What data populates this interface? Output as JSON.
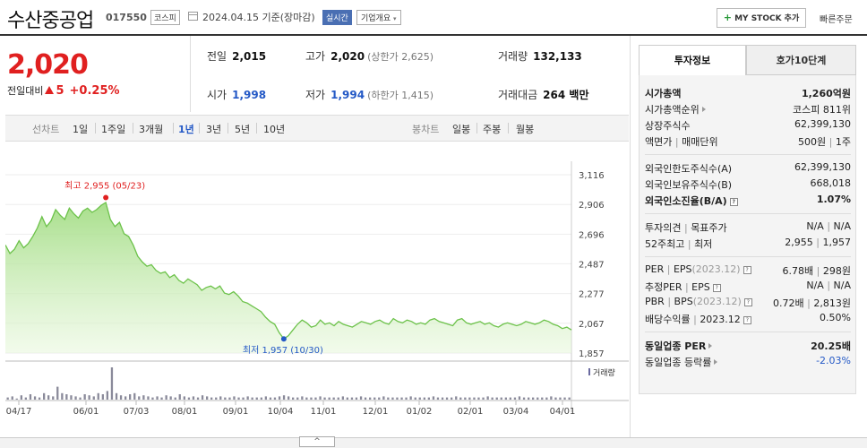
{
  "header": {
    "stock_name": "수산중공업",
    "stock_code": "017550",
    "market_badge": "코스피",
    "date_text": "2024.04.15  기준(장마감)",
    "realtime_badge": "실시간",
    "company_overview": "기업개요",
    "my_stock_button": "MY STOCK 추가",
    "quick_order": "빠른주문"
  },
  "summary": {
    "price": "2,020",
    "change_label": "전일대비",
    "change_value": "5",
    "change_pct": "+0.25%",
    "colors": {
      "up": "#e02020",
      "down": "#2459c6"
    }
  },
  "quotes": {
    "prev_close_label": "전일",
    "prev_close": "2,015",
    "high_label": "고가",
    "high": "2,020",
    "upper_limit": "(상한가 2,625)",
    "volume_label": "거래량",
    "volume": "132,133",
    "open_label": "시가",
    "open": "1,998",
    "low_label": "저가",
    "low": "1,994",
    "lower_limit": "(하한가 1,415)",
    "amount_label": "거래대금",
    "amount": "264 백만"
  },
  "period_tabs": {
    "line_label": "선차트",
    "line_items": [
      "1일",
      "1주일",
      "3개월",
      "1년",
      "3년",
      "5년",
      "10년"
    ],
    "selected": "1년",
    "candle_label": "봉차트",
    "candle_items": [
      "일봉",
      "주봉",
      "월봉"
    ]
  },
  "chart_data": {
    "type": "area",
    "title": "",
    "x_ticks": [
      "04/17",
      "06/01",
      "07/03",
      "08/01",
      "09/01",
      "10/04",
      "11/01",
      "12/01",
      "01/02",
      "02/01",
      "03/04",
      "04/01"
    ],
    "y_ticks": [
      3116,
      2906,
      2696,
      2487,
      2277,
      2067,
      1857
    ],
    "ylim": [
      1857,
      3116
    ],
    "high_annotation": "최고 2,955 (05/23)",
    "low_annotation": "최저 1,957 (10/30)",
    "high_value": 2955,
    "low_value": 1957,
    "volume_label": "거래량",
    "series": [
      {
        "values": [
          2620,
          2560,
          2590,
          2650,
          2600,
          2630,
          2680,
          2740,
          2820,
          2750,
          2790,
          2870,
          2830,
          2800,
          2880,
          2840,
          2810,
          2860,
          2880,
          2850,
          2870,
          2900,
          2920,
          2800,
          2750,
          2780,
          2700,
          2680,
          2620,
          2540,
          2500,
          2470,
          2480,
          2440,
          2420,
          2430,
          2390,
          2410,
          2370,
          2350,
          2380,
          2360,
          2340,
          2300,
          2320,
          2330,
          2310,
          2330,
          2280,
          2270,
          2290,
          2260,
          2220,
          2210,
          2190,
          2170,
          2150,
          2110,
          2080,
          2060,
          2000,
          1957,
          1980,
          2020,
          2060,
          2090,
          2070,
          2040,
          2050,
          2090,
          2060,
          2070,
          2050,
          2080,
          2060,
          2050,
          2040,
          2060,
          2080,
          2070,
          2060,
          2080,
          2090,
          2070,
          2060,
          2100,
          2080,
          2070,
          2090,
          2080,
          2060,
          2070,
          2060,
          2090,
          2100,
          2080,
          2070,
          2060,
          2050,
          2090,
          2100,
          2070,
          2060,
          2070,
          2080,
          2060,
          2070,
          2050,
          2040,
          2060,
          2070,
          2060,
          2050,
          2060,
          2080,
          2070,
          2060,
          2070,
          2090,
          2080,
          2060,
          2050,
          2030,
          2040,
          2020
        ]
      }
    ],
    "volume_values": [
      2,
      3,
      1,
      4,
      2,
      5,
      3,
      2,
      6,
      4,
      3,
      12,
      6,
      5,
      4,
      3,
      2,
      5,
      4,
      3,
      6,
      5,
      8,
      30,
      6,
      4,
      3,
      5,
      6,
      3,
      4,
      3,
      2,
      3,
      2,
      4,
      3,
      2,
      5,
      3,
      2,
      3,
      2,
      4,
      3,
      2,
      2,
      3,
      2,
      2,
      3,
      2,
      2,
      3,
      2,
      2,
      2,
      3,
      2,
      2,
      3,
      4,
      3,
      2,
      2,
      3,
      2,
      2,
      2,
      3,
      2,
      2,
      2,
      2,
      3,
      2,
      2,
      2,
      3,
      2,
      2,
      2,
      2,
      3,
      2,
      2,
      2,
      2,
      2,
      3,
      2,
      2,
      2,
      2,
      3,
      2,
      2,
      2,
      2,
      3,
      2,
      2,
      2,
      2,
      2,
      2,
      3,
      2,
      2,
      2,
      2,
      2,
      2,
      3,
      2,
      2,
      2,
      2,
      2,
      2,
      3,
      2,
      2,
      2,
      2
    ]
  },
  "invest": {
    "tab_active": "투자정보",
    "tab_other": "호가10단계",
    "market_cap_label": "시가총액",
    "market_cap": "1,260억원",
    "cap_rank_label": "시가총액순위",
    "cap_rank": "코스피 811위",
    "shares_label": "상장주식수",
    "shares": "62,399,130",
    "par_label": "액면가",
    "unit_label": "매매단위",
    "par": "500원",
    "unit": "1주",
    "foreign_limit_label": "외국인한도주식수(A)",
    "foreign_limit": "62,399,130",
    "foreign_hold_label": "외국인보유주식수(B)",
    "foreign_hold": "668,018",
    "foreign_ratio_label": "외국인소진율(B/A)",
    "foreign_ratio": "1.07%",
    "opinion_label": "투자의견",
    "target_label": "목표주가",
    "opinion": "N/A",
    "target": "N/A",
    "w52_high_label": "52주최고",
    "w52_low_label": "최저",
    "w52_high": "2,955",
    "w52_low": "1,957",
    "per_label": "PER",
    "eps_label": "EPS",
    "eps_year": "(2023.12)",
    "per": "6.78배",
    "eps": "298원",
    "est_per_label": "추정PER",
    "est_eps_label": "EPS",
    "est_per": "N/A",
    "est_eps": "N/A",
    "pbr_label": "PBR",
    "bps_label": "BPS",
    "bps_year": "(2023.12)",
    "pbr": "0.72배",
    "bps": "2,813원",
    "div_label": "배당수익률",
    "div_year": "2023.12",
    "div": "0.50%",
    "ind_per_label": "동일업종 PER",
    "ind_per": "20.25배",
    "ind_rate_label": "동일업종 등락률",
    "ind_rate": "-2.03%"
  },
  "scroll_handle": "^"
}
